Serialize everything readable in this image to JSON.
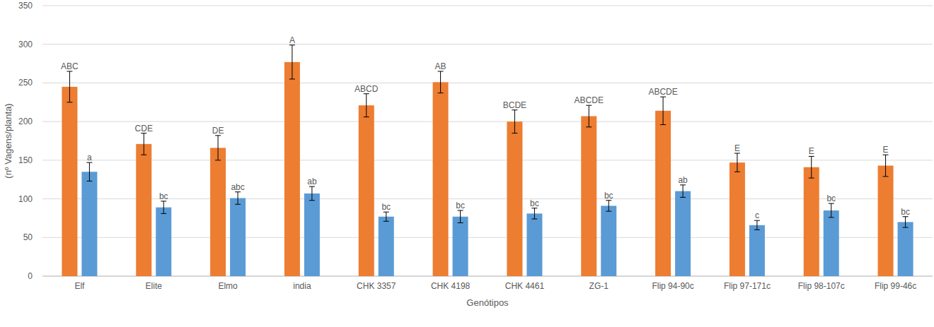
{
  "chart_data": {
    "type": "bar",
    "x_label": "Genótipos",
    "y_label": "(nº Vagens/planta)",
    "categories": [
      "Elf",
      "Elite",
      "Elmo",
      "india",
      "CHK 3357",
      "CHK 4198",
      "CHK 4461",
      "ZG-1",
      "Flip 94-90c",
      "Flip 97-171c",
      "Flip 98-107c",
      "Flip 99-46c"
    ],
    "series": [
      {
        "color": "#ed7d31",
        "values": [
          245,
          171,
          166,
          277,
          221,
          251,
          200,
          207,
          214,
          147,
          141,
          143
        ],
        "errors": [
          20,
          14,
          16,
          22,
          15,
          14,
          15,
          14,
          18,
          12,
          14,
          14
        ],
        "letters": [
          "ABC",
          "CDE",
          "DE",
          "A",
          "ABCD",
          "AB",
          "BCDE",
          "ABCDE",
          "ABCDE",
          "E",
          "E",
          "E"
        ]
      },
      {
        "color": "#5b9bd5",
        "values": [
          135,
          89,
          101,
          107,
          77,
          77,
          81,
          91,
          110,
          66,
          85,
          70
        ],
        "errors": [
          12,
          8,
          8,
          9,
          6,
          8,
          7,
          7,
          8,
          6,
          9,
          7
        ],
        "letters": [
          "a",
          "bc",
          "abc",
          "ab",
          "bc",
          "bc",
          "bc",
          "bc",
          "ab",
          "c",
          "bc",
          "bc"
        ]
      }
    ],
    "ylim": [
      0,
      350
    ],
    "yticks": [
      0,
      50,
      100,
      150,
      200,
      250,
      300,
      350
    ],
    "grid": true
  }
}
